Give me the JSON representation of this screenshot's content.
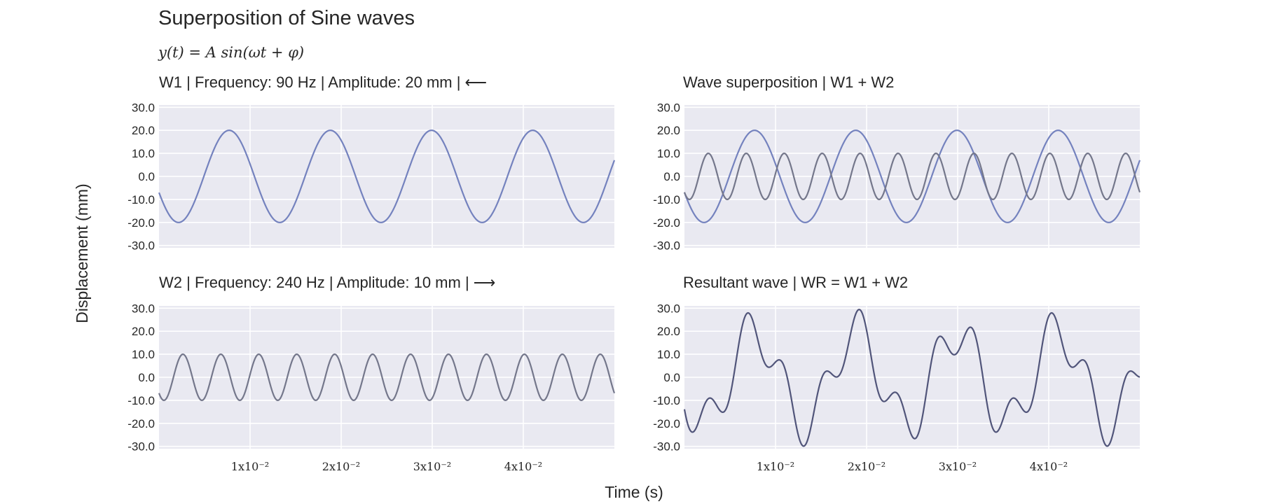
{
  "figure": {
    "title": "Superposition of Sine waves",
    "equation": "y(t) = A sin(ωt + φ)",
    "xlabel": "Time (s)",
    "ylabel": "Displacement (mm)",
    "colors": {
      "panel_bg": "#e9e9f1",
      "grid": "#ffffff",
      "w1": "#7482be",
      "w2": "#74778b",
      "wr": "#51557a",
      "text": "#262626"
    }
  },
  "waves": {
    "w1": {
      "name": "W1",
      "frequency_hz": 90,
      "amplitude_mm": 20,
      "direction": "left",
      "arrow": "⟵"
    },
    "w2": {
      "name": "W2",
      "frequency_hz": 240,
      "amplitude_mm": 10,
      "direction": "right",
      "arrow": "⟶"
    }
  },
  "chart_data": [
    {
      "type": "line",
      "title": "W1 | Frequency: 90 Hz | Amplitude: 20 mm | ⟵",
      "x_range": [
        0,
        0.05
      ],
      "ylim": [
        -31,
        31
      ],
      "yticks": [
        "30.0",
        "20.0",
        "10.0",
        "0.0",
        "-10.0",
        "-20.0",
        "-30.0"
      ],
      "xticks": [],
      "series": [
        {
          "name": "W1",
          "expression": "20*sin(2π*90*t + 3.5)",
          "color": "#7482be"
        }
      ]
    },
    {
      "type": "line",
      "title": "Wave superposition | W1 + W2",
      "x_range": [
        0,
        0.05
      ],
      "ylim": [
        -31,
        31
      ],
      "yticks": [
        "30.0",
        "20.0",
        "10.0",
        "0.0",
        "-10.0",
        "-20.0",
        "-30.0"
      ],
      "xticks": [],
      "series": [
        {
          "name": "W1",
          "expression": "20*sin(2π*90*t + 3.5)",
          "color": "#7482be"
        },
        {
          "name": "W2",
          "expression": "10*sin(2π*240*t + 3.9)",
          "color": "#74778b"
        }
      ]
    },
    {
      "type": "line",
      "title": "W2 | Frequency: 240 Hz | Amplitude: 10 mm | ⟶",
      "x_range": [
        0,
        0.05
      ],
      "ylim": [
        -31,
        31
      ],
      "yticks": [
        "30.0",
        "20.0",
        "10.0",
        "0.0",
        "-10.0",
        "-20.0",
        "-30.0"
      ],
      "xticks": [
        "1x10⁻²",
        "2x10⁻²",
        "3x10⁻²",
        "4x10⁻²"
      ],
      "xtick_values": [
        0.01,
        0.02,
        0.03,
        0.04
      ],
      "series": [
        {
          "name": "W2",
          "expression": "10*sin(2π*240*t + 3.9)",
          "color": "#74778b"
        }
      ]
    },
    {
      "type": "line",
      "title": "Resultant wave | WR = W1 + W2",
      "x_range": [
        0,
        0.05
      ],
      "ylim": [
        -31,
        31
      ],
      "yticks": [
        "30.0",
        "20.0",
        "10.0",
        "0.0",
        "-10.0",
        "-20.0",
        "-30.0"
      ],
      "xticks": [
        "1x10⁻²",
        "2x10⁻²",
        "3x10⁻²",
        "4x10⁻²"
      ],
      "xtick_values": [
        0.01,
        0.02,
        0.03,
        0.04
      ],
      "series": [
        {
          "name": "WR",
          "expression": "W1 + W2",
          "color": "#51557a"
        }
      ]
    }
  ]
}
